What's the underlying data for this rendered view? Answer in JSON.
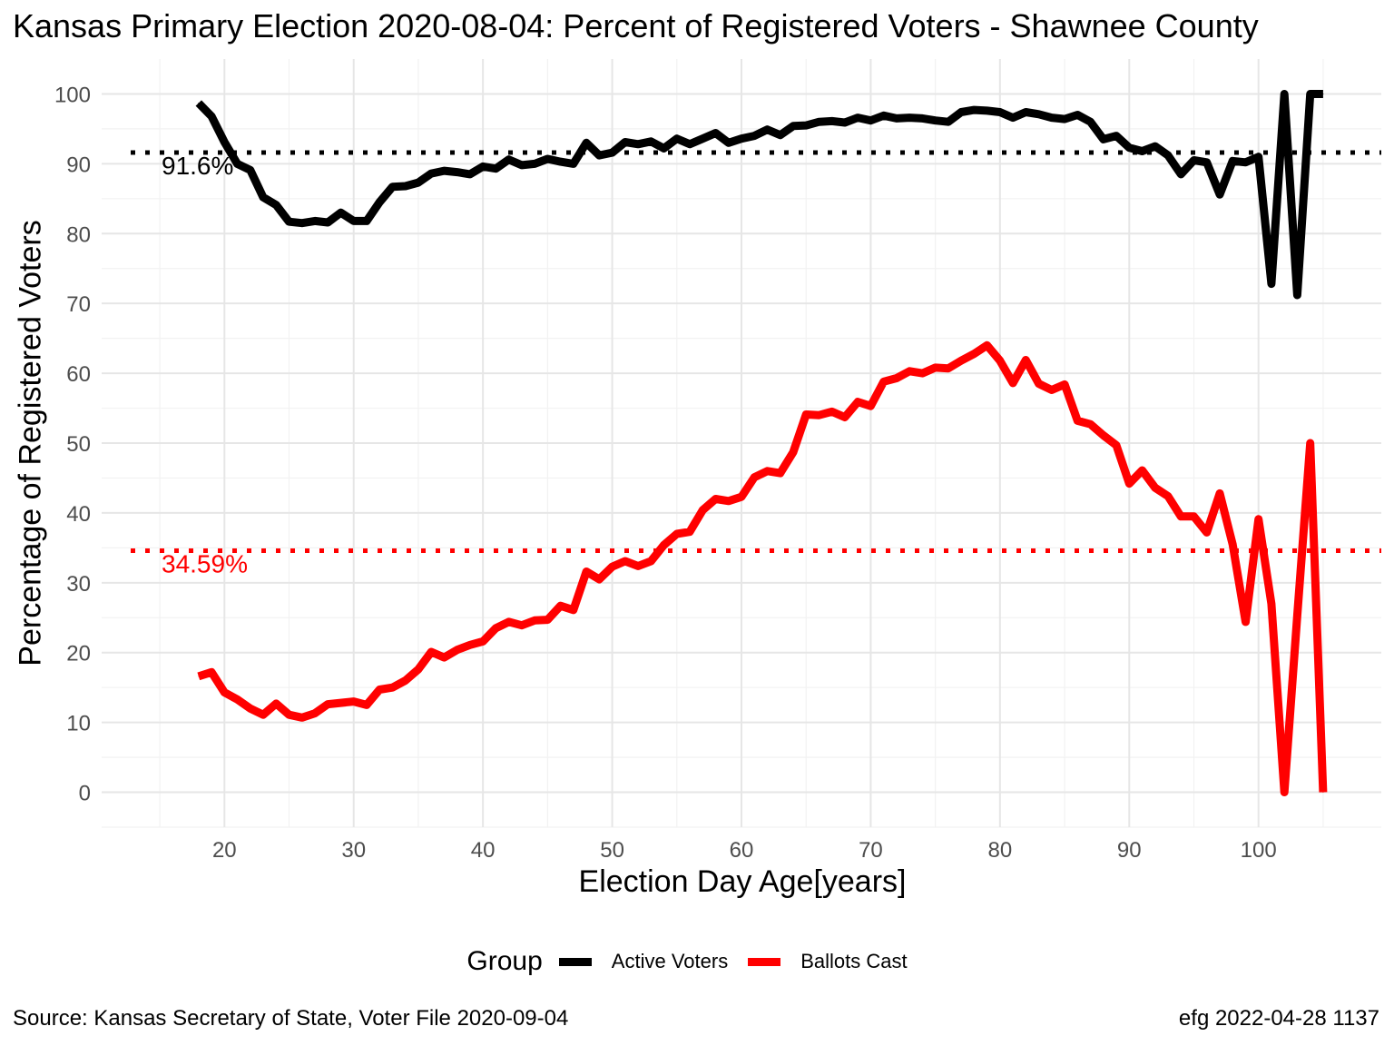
{
  "title": "Kansas Primary Election 2020-08-04:  Percent of Registered Voters - Shawnee County",
  "caption_left": "Source:  Kansas Secretary of State, Voter File  2020-09-04",
  "caption_right": "efg 2022-04-28 1137",
  "legend": {
    "title": "Group",
    "items": [
      {
        "label": "Active Voters",
        "color": "#000000"
      },
      {
        "label": "Ballots Cast",
        "color": "#ff0000"
      }
    ]
  },
  "chart_data": {
    "type": "line",
    "title": "Kansas Primary Election 2020-08-04:  Percent of Registered Voters - Shawnee County",
    "xlabel": "Election Day Age[years]",
    "ylabel": "Percentage of Registered Voters",
    "xlim": [
      10.5,
      109.5
    ],
    "ylim": [
      -5,
      105
    ],
    "xticks": [
      20,
      30,
      40,
      50,
      60,
      70,
      80,
      90,
      100
    ],
    "yticks": [
      0,
      10,
      20,
      30,
      40,
      50,
      60,
      70,
      80,
      90,
      100
    ],
    "grid": true,
    "legend_position": "bottom",
    "x": [
      18,
      19,
      20,
      21,
      22,
      23,
      24,
      25,
      26,
      27,
      28,
      29,
      30,
      31,
      32,
      33,
      34,
      35,
      36,
      37,
      38,
      39,
      40,
      41,
      42,
      43,
      44,
      45,
      46,
      47,
      48,
      49,
      50,
      51,
      52,
      53,
      54,
      55,
      56,
      57,
      58,
      59,
      60,
      61,
      62,
      63,
      64,
      65,
      66,
      67,
      68,
      69,
      70,
      71,
      72,
      73,
      74,
      75,
      76,
      77,
      78,
      79,
      80,
      81,
      82,
      83,
      84,
      85,
      86,
      87,
      88,
      89,
      90,
      91,
      92,
      93,
      94,
      95,
      96,
      97,
      98,
      99,
      100,
      101,
      102,
      103,
      104,
      105
    ],
    "series": [
      {
        "name": "Active Voters",
        "color": "#000000",
        "values": [
          98.7,
          96.8,
          93.1,
          90.0,
          89.1,
          85.2,
          84.1,
          81.7,
          81.5,
          81.8,
          81.6,
          83.0,
          81.8,
          81.8,
          84.5,
          86.7,
          86.8,
          87.3,
          88.6,
          89.0,
          88.8,
          88.5,
          89.6,
          89.3,
          90.6,
          89.8,
          90.0,
          90.7,
          90.3,
          90.0,
          93.0,
          91.2,
          91.6,
          93.1,
          92.8,
          93.2,
          92.2,
          93.6,
          92.8,
          93.6,
          94.4,
          93.0,
          93.6,
          94.0,
          94.9,
          94.1,
          95.4,
          95.5,
          96.0,
          96.1,
          95.9,
          96.6,
          96.2,
          96.9,
          96.5,
          96.6,
          96.5,
          96.2,
          96.0,
          97.4,
          97.7,
          97.6,
          97.4,
          96.6,
          97.4,
          97.1,
          96.6,
          96.4,
          97.0,
          96.0,
          93.5,
          94.0,
          92.3,
          91.8,
          92.5,
          91.2,
          88.5,
          90.5,
          90.2,
          85.6,
          90.4,
          90.2,
          91.0,
          72.8,
          100.0,
          71.2,
          100.0,
          100.0
        ]
      },
      {
        "name": "Ballots Cast",
        "color": "#ff0000",
        "values": [
          16.6,
          17.2,
          14.3,
          13.3,
          12.0,
          11.1,
          12.7,
          11.1,
          10.7,
          11.3,
          12.6,
          12.8,
          13.0,
          12.5,
          14.7,
          15.0,
          16.0,
          17.6,
          20.1,
          19.3,
          20.4,
          21.1,
          21.6,
          23.5,
          24.4,
          23.9,
          24.6,
          24.7,
          26.7,
          26.1,
          31.6,
          30.5,
          32.3,
          33.1,
          32.4,
          33.1,
          35.4,
          37.0,
          37.3,
          40.4,
          42.0,
          41.7,
          42.3,
          45.1,
          46.0,
          45.7,
          48.7,
          54.1,
          54.0,
          54.5,
          53.7,
          55.9,
          55.3,
          58.8,
          59.3,
          60.3,
          60.0,
          60.8,
          60.7,
          61.8,
          62.8,
          64.0,
          61.8,
          58.6,
          61.9,
          58.5,
          57.6,
          58.4,
          53.2,
          52.7,
          51.1,
          49.7,
          44.2,
          46.1,
          43.6,
          42.4,
          39.5,
          39.5,
          37.2,
          42.8,
          35.5,
          24.4,
          39.1,
          27.0,
          0.0,
          25.3,
          50.0,
          0.0
        ]
      }
    ],
    "reference_lines": [
      {
        "value": 91.6,
        "label": "91.6%",
        "color": "#000000"
      },
      {
        "value": 34.59,
        "label": "34.59%",
        "color": "#ff0000"
      }
    ]
  }
}
